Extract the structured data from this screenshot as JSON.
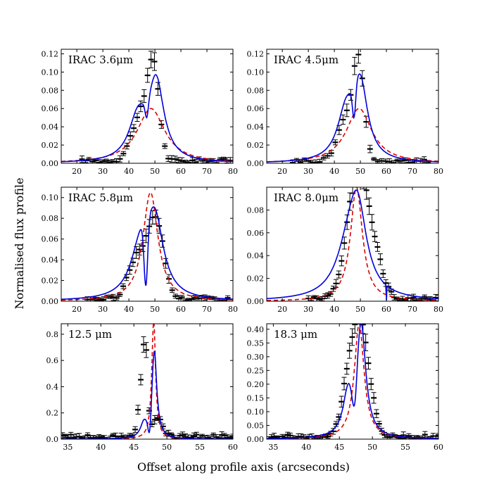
{
  "figure": {
    "ylabel": "Normalised flux profile",
    "xlabel": "Offset along profile axis (arcseconds)"
  },
  "colors": {
    "model_blue": "#0000dd",
    "model_red": "#dd0000",
    "data": "#000000"
  },
  "chart_data": [
    {
      "type": "line",
      "label": "IRAC 3.6μm",
      "xlim": [
        14,
        80
      ],
      "ylim": [
        0,
        0.125
      ],
      "xticks": [
        20,
        30,
        40,
        50,
        60,
        70,
        80
      ],
      "yticks": [
        0.0,
        0.02,
        0.04,
        0.06,
        0.08,
        0.1,
        0.12
      ],
      "ytick_labels": [
        "0.00",
        "0.02",
        "0.04",
        "0.06",
        "0.08",
        "0.10",
        "0.12"
      ],
      "blue": {
        "amp1": 0.045,
        "c1": 43.5,
        "w1": 4.2,
        "amp2": 0.085,
        "c2": 50.5,
        "w2": 3.6,
        "dip_c": 46.8,
        "dip_w": 0.6,
        "dip_d": 0.05
      },
      "red": {
        "amp": 0.06,
        "c": 48.5,
        "w": 6.5
      },
      "data": {
        "xmin": 22,
        "xmax": 79,
        "n": 44,
        "peaks": [
          [
            44.5,
            0.05,
            3.5
          ],
          [
            49.5,
            0.095,
            2.2
          ]
        ]
      }
    },
    {
      "type": "line",
      "label": "IRAC 4.5μm",
      "xlim": [
        14,
        80
      ],
      "ylim": [
        0,
        0.125
      ],
      "xticks": [
        20,
        30,
        40,
        50,
        60,
        70,
        80
      ],
      "yticks": [
        0.0,
        0.02,
        0.04,
        0.06,
        0.08,
        0.1,
        0.12
      ],
      "ytick_labels": [
        "0.00",
        "0.02",
        "0.04",
        "0.06",
        "0.08",
        "0.10",
        "0.12"
      ],
      "blue": {
        "amp1": 0.05,
        "c1": 44.5,
        "w1": 4.0,
        "amp2": 0.08,
        "c2": 50,
        "w2": 3.4,
        "dip_c": 47.5,
        "dip_w": 0.6,
        "dip_d": 0.05
      },
      "red": {
        "amp": 0.06,
        "c": 49.5,
        "w": 6.0
      },
      "data": {
        "xmin": 24,
        "xmax": 76,
        "n": 36,
        "peaks": [
          [
            45,
            0.05,
            3.5
          ],
          [
            49.5,
            0.096,
            2.0
          ]
        ]
      }
    },
    {
      "type": "line",
      "label": "IRAC 5.8μm",
      "xlim": [
        14,
        80
      ],
      "ylim": [
        0,
        0.11
      ],
      "xticks": [
        20,
        30,
        40,
        50,
        60,
        70,
        80
      ],
      "yticks": [
        0.0,
        0.02,
        0.04,
        0.06,
        0.08,
        0.1
      ],
      "ytick_labels": [
        "0.00",
        "0.02",
        "0.04",
        "0.06",
        "0.08",
        "0.10"
      ],
      "blue": {
        "amp1": 0.045,
        "c1": 44.5,
        "w1": 4.5,
        "amp2": 0.072,
        "c2": 50,
        "w2": 4.0,
        "dip_c": 46.5,
        "dip_w": 0.7,
        "dip_d": 0.015
      },
      "red": {
        "amp": 0.105,
        "c": 48.3,
        "w": 3.5
      },
      "data": {
        "xmin": 24,
        "xmax": 78,
        "n": 44,
        "peaks": [
          [
            43.5,
            0.042,
            3.5
          ],
          [
            50.5,
            0.073,
            3.0
          ]
        ]
      }
    },
    {
      "type": "line",
      "label": "IRAC 8.0μm",
      "xlim": [
        14,
        80
      ],
      "ylim": [
        0,
        0.1
      ],
      "xticks": [
        20,
        30,
        40,
        50,
        60,
        70,
        80
      ],
      "yticks": [
        0.0,
        0.02,
        0.04,
        0.06,
        0.08
      ],
      "ytick_labels": [
        "0.00",
        "0.02",
        "0.04",
        "0.06",
        "0.08"
      ],
      "blue": {
        "amp1": 0.045,
        "c1": 46,
        "w1": 6.0,
        "amp2": 0.06,
        "c2": 49,
        "w2": 4.0,
        "dip_c": 60,
        "dip_w": 0.1,
        "dip_d": 0
      },
      "red": {
        "amp": 0.1,
        "c": 48.5,
        "w": 2.8
      },
      "data": {
        "xmin": 30,
        "xmax": 80,
        "n": 48,
        "peaks": [
          [
            47,
            0.045,
            4.0
          ],
          [
            50,
            0.078,
            3.5
          ],
          [
            56,
            0.03,
            3.0
          ]
        ]
      }
    },
    {
      "type": "line",
      "label": "12.5 μm",
      "xlim": [
        34,
        60
      ],
      "ylim": [
        0,
        0.88
      ],
      "xticks": [
        35,
        40,
        45,
        50,
        55,
        60
      ],
      "yticks": [
        0.0,
        0.2,
        0.4,
        0.6,
        0.8
      ],
      "ytick_labels": [
        "0.0",
        "0.2",
        "0.4",
        "0.6",
        "0.8"
      ],
      "blue": {
        "amp1": 0.1,
        "c1": 46.5,
        "w1": 0.6,
        "amp2": 0.66,
        "c2": 48.1,
        "w2": 0.45,
        "dip_c": 47.3,
        "dip_w": 0.2,
        "dip_d": 0.05
      },
      "red": {
        "amp": 0.9,
        "c": 48.0,
        "w": 0.35
      },
      "data": {
        "xmin": 34.2,
        "xmax": 60,
        "n": 62,
        "peaks": [
          [
            46.7,
            0.7,
            0.35
          ],
          [
            46.0,
            0.3,
            0.4
          ],
          [
            48.5,
            0.15,
            0.8
          ]
        ]
      }
    },
    {
      "type": "line",
      "label": "18.3 μm",
      "xlim": [
        34,
        60
      ],
      "ylim": [
        0,
        0.42
      ],
      "xticks": [
        35,
        40,
        45,
        50,
        55,
        60
      ],
      "yticks": [
        0.0,
        0.05,
        0.1,
        0.15,
        0.2,
        0.25,
        0.3,
        0.35,
        0.4
      ],
      "ytick_labels": [
        "0.00",
        "0.05",
        "0.10",
        "0.15",
        "0.20",
        "0.25",
        "0.30",
        "0.35",
        "0.40"
      ],
      "blue": {
        "amp1": 0.14,
        "c1": 46.3,
        "w1": 0.9,
        "amp2": 0.4,
        "c2": 48.3,
        "w2": 0.85,
        "dip_c": 47.2,
        "dip_w": 0.3,
        "dip_d": 0.12
      },
      "red": {
        "amp": 0.42,
        "c": 48.0,
        "w": 0.9
      },
      "data": {
        "xmin": 34.3,
        "xmax": 60,
        "n": 64,
        "peaks": [
          [
            46.6,
            0.25,
            1.1
          ],
          [
            48.2,
            0.33,
            0.9
          ],
          [
            49.7,
            0.13,
            0.9
          ]
        ]
      }
    }
  ]
}
